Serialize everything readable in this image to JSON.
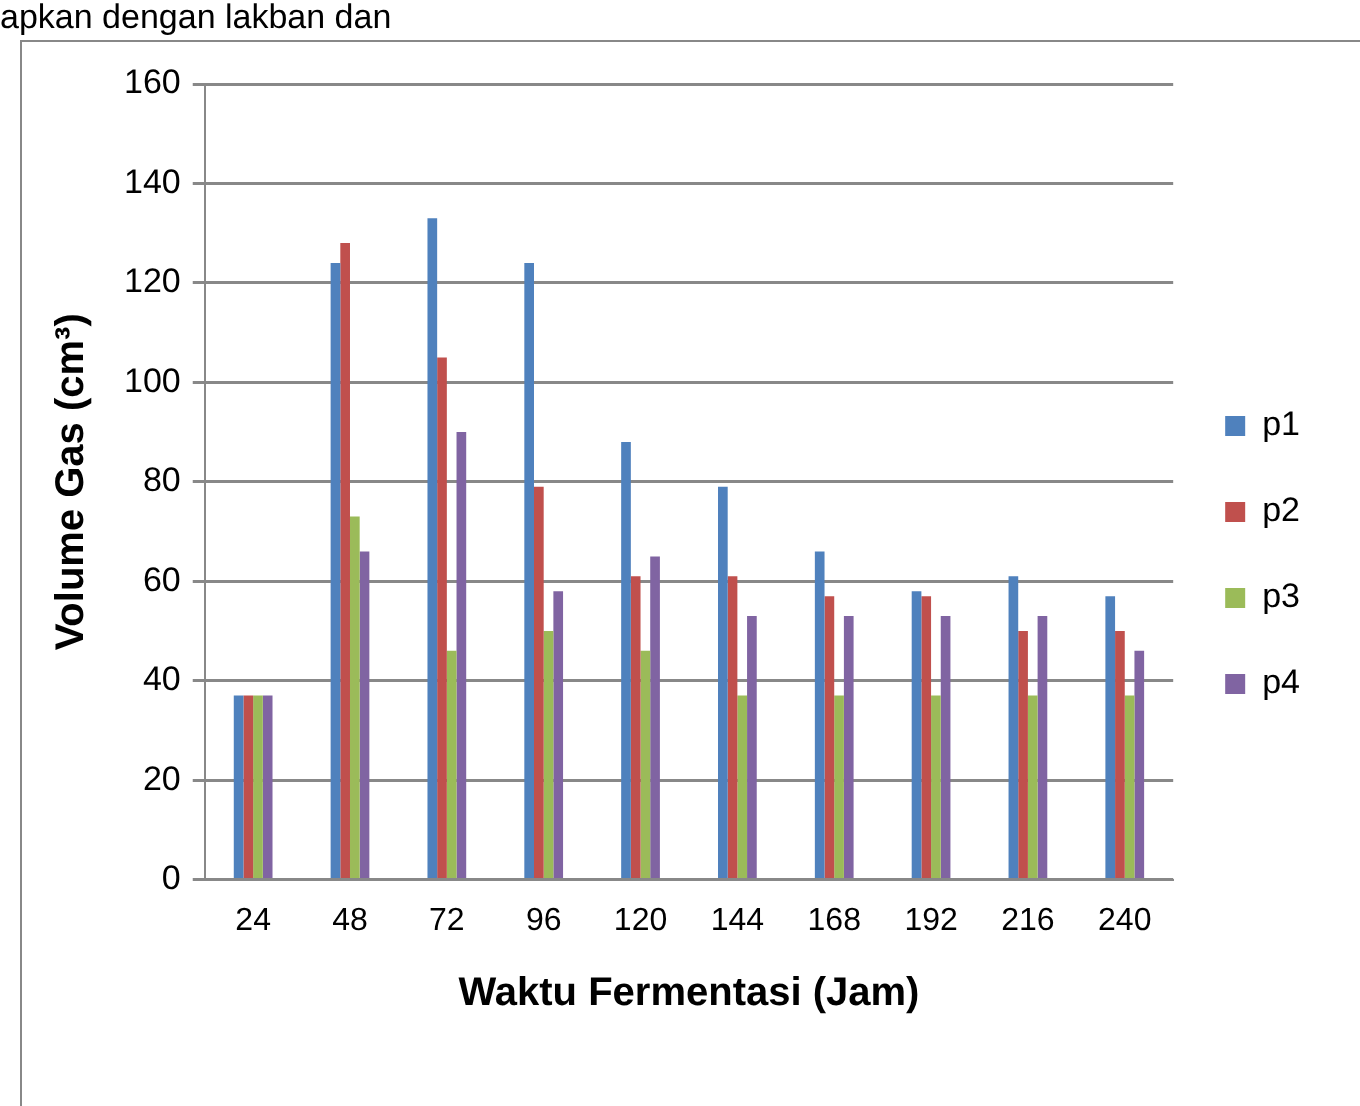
{
  "chart_data": {
    "type": "bar",
    "xlabel": "Waktu Fermentasi (Jam)",
    "ylabel": "Volume Gas (cm³)",
    "annotations": [
      "apkan dengan lakban dan"
    ],
    "categories": [
      "24",
      "48",
      "72",
      "96",
      "120",
      "144",
      "168",
      "192",
      "216",
      "240"
    ],
    "series": [
      {
        "name": "p1",
        "color": "#4f81bd",
        "values": [
          37,
          124,
          133,
          124,
          88,
          79,
          66,
          58,
          61,
          57
        ]
      },
      {
        "name": "p2",
        "color": "#c0504d",
        "values": [
          37,
          128,
          105,
          79,
          61,
          61,
          57,
          57,
          50,
          50
        ]
      },
      {
        "name": "p3",
        "color": "#9bbb59",
        "values": [
          37,
          73,
          46,
          50,
          46,
          37,
          37,
          37,
          37,
          37
        ]
      },
      {
        "name": "p4",
        "color": "#8064a2",
        "values": [
          37,
          66,
          90,
          58,
          65,
          53,
          53,
          53,
          53,
          46
        ]
      }
    ],
    "ylim": [
      0,
      160
    ],
    "yticks": [
      0,
      20,
      40,
      60,
      80,
      100,
      120,
      140,
      160
    ],
    "grid": "y",
    "legend": "right"
  }
}
